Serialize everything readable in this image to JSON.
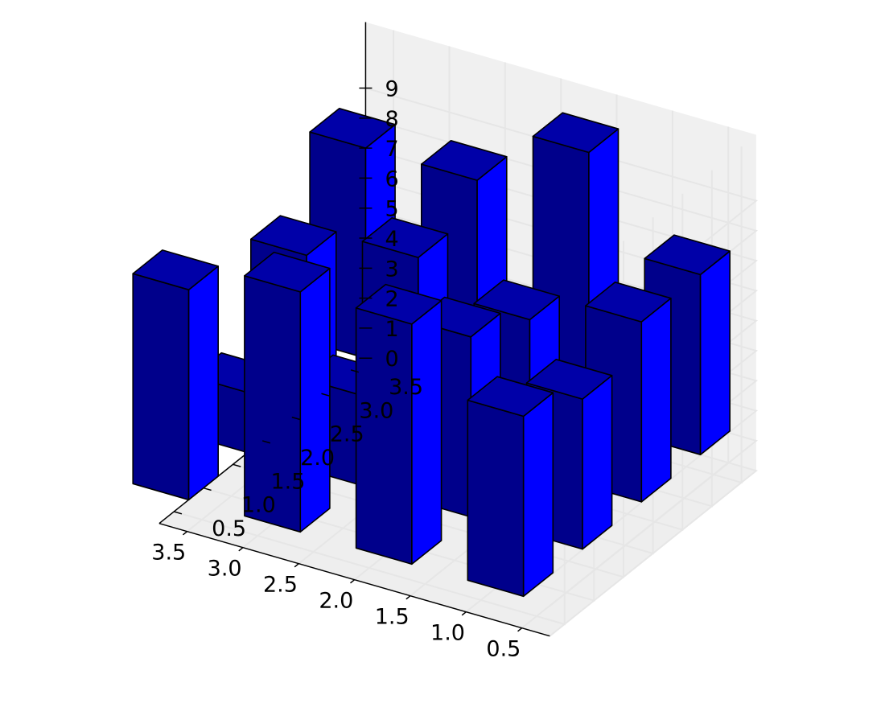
{
  "chart_data": {
    "type": "bar3d",
    "x_ticks": [
      "0.5",
      "1.0",
      "1.5",
      "2.0",
      "2.5",
      "3.0",
      "3.5"
    ],
    "y_ticks": [
      "0.5",
      "1.0",
      "1.5",
      "2.0",
      "2.5",
      "3.0",
      "3.5"
    ],
    "z_ticks": [
      "0",
      "1",
      "2",
      "3",
      "4",
      "5",
      "6",
      "7",
      "8",
      "9"
    ],
    "xlim": [
      0.5,
      3.5
    ],
    "ylim": [
      0.5,
      3.5
    ],
    "zlim": [
      0,
      9
    ],
    "bar_width": 0.5,
    "bar_depth": 0.5,
    "grid": true,
    "colors": {
      "front": "#00008b",
      "side": "#0000ff",
      "top": "#0000a8",
      "edge": "#000000",
      "pane_back": "#f0f0f0",
      "pane_side": "#f7f7f7",
      "grid": "#e6e6e6"
    },
    "bars": [
      {
        "x": 1,
        "y": 4,
        "z": 6
      },
      {
        "x": 2,
        "y": 4,
        "z": 9
      },
      {
        "x": 3,
        "y": 4,
        "z": 7
      },
      {
        "x": 4,
        "y": 4,
        "z": 7
      },
      {
        "x": 1,
        "y": 3,
        "z": 6
      },
      {
        "x": 2,
        "y": 3,
        "z": 5
      },
      {
        "x": 3,
        "y": 3,
        "z": 6
      },
      {
        "x": 4,
        "y": 3,
        "z": 5
      },
      {
        "x": 1,
        "y": 2,
        "z": 5
      },
      {
        "x": 2,
        "y": 2,
        "z": 6
      },
      {
        "x": 3,
        "y": 2,
        "z": 3
      },
      {
        "x": 4,
        "y": 2,
        "z": 2
      },
      {
        "x": 1,
        "y": 1,
        "z": 6
      },
      {
        "x": 2,
        "y": 1,
        "z": 8
      },
      {
        "x": 3,
        "y": 1,
        "z": 8
      },
      {
        "x": 4,
        "y": 1,
        "z": 7
      }
    ]
  }
}
